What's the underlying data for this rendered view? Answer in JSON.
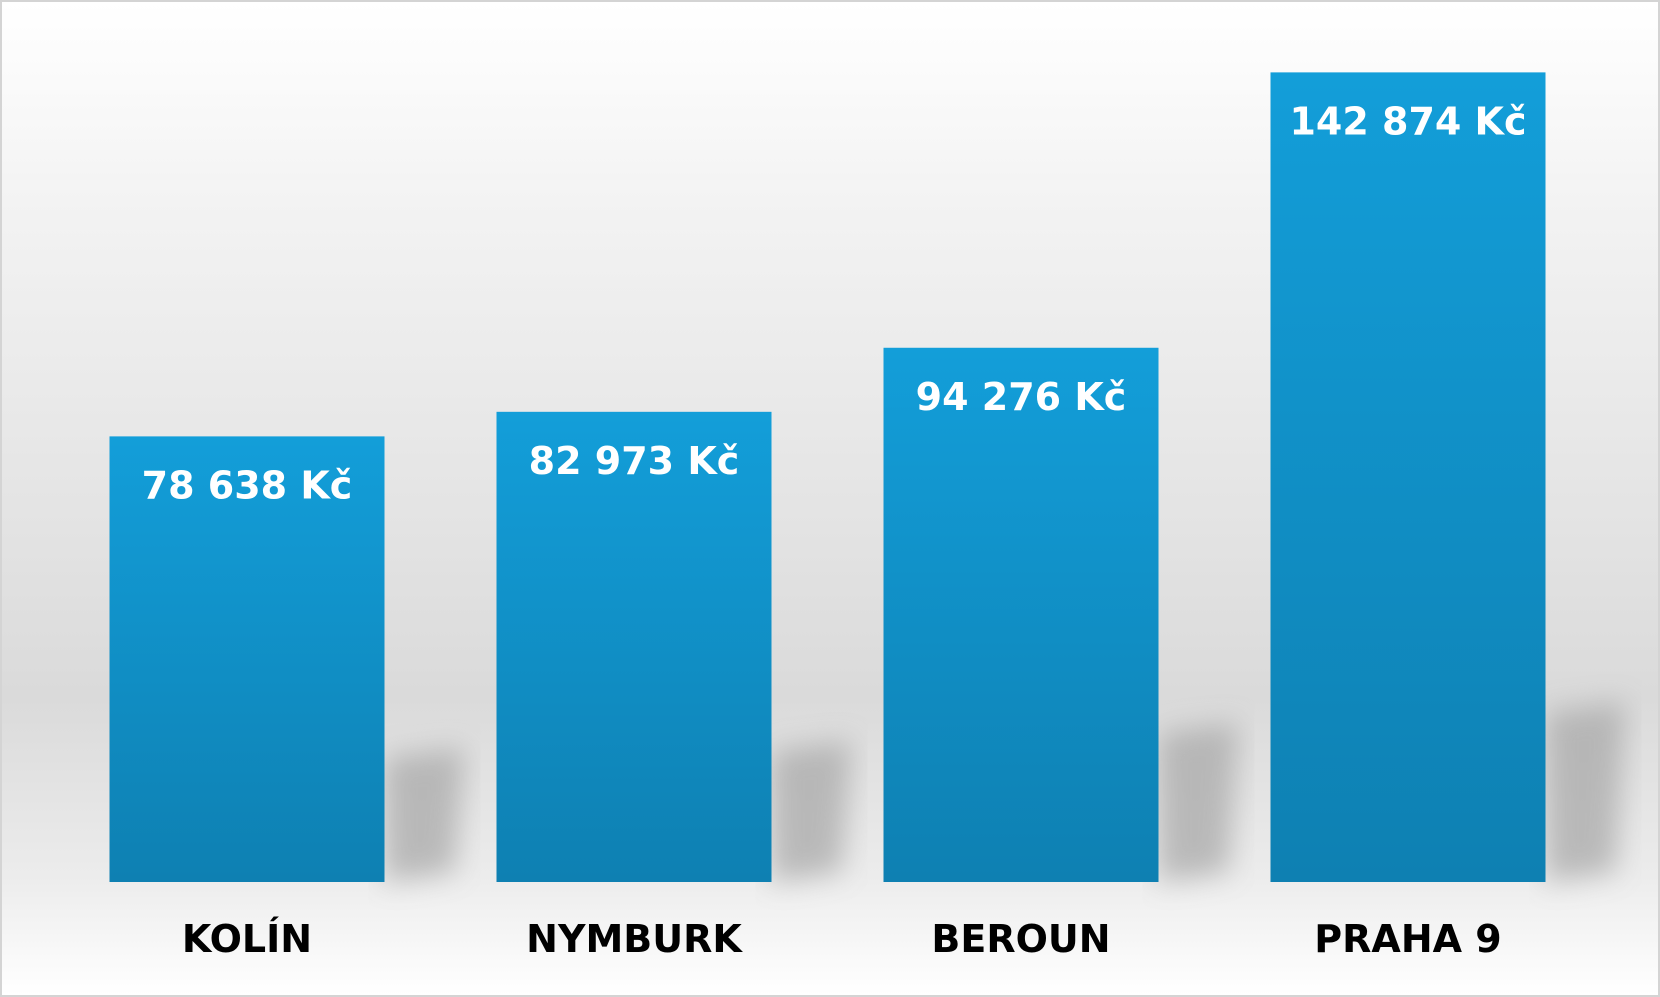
{
  "chart_data": {
    "type": "bar",
    "categories": [
      "KOLÍN",
      "NYMBURK",
      "BEROUN",
      "PRAHA 9"
    ],
    "values": [
      78638,
      82973,
      94276,
      142874
    ],
    "value_labels": [
      "78 638 Kč",
      "82 973 Kč",
      "94 276 Kč",
      "142 874 Kč"
    ],
    "ylim": [
      0,
      150000
    ],
    "grid": false,
    "bar_color_top": "#139ed9",
    "bar_color_bottom": "#0e80b2",
    "label_color": "#ffffff",
    "category_color": "#000000"
  }
}
